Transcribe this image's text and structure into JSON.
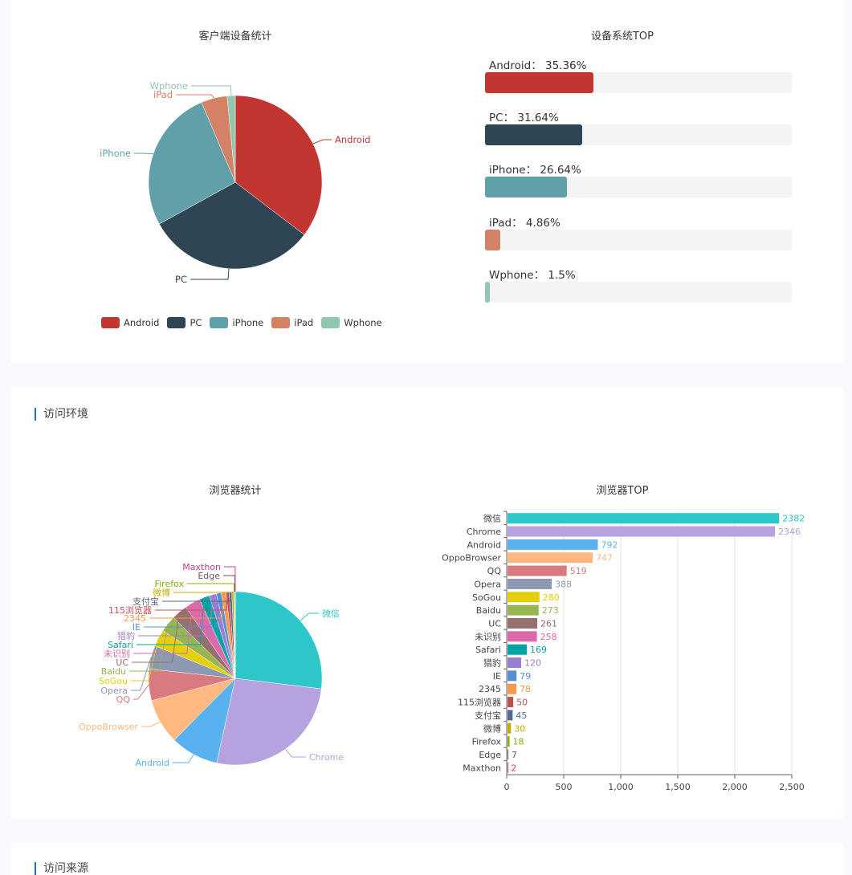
{
  "sections": {
    "environment_heading": "访问环境",
    "source_heading": "访问来源"
  },
  "chart_data": [
    {
      "type": "pie",
      "title": "客户端设备统计",
      "categories": [
        "Android",
        "PC",
        "iPhone",
        "iPad",
        "Wphone"
      ],
      "values": [
        35.36,
        31.64,
        26.64,
        4.86,
        1.5
      ],
      "colors": [
        "#c23531",
        "#2f4554",
        "#61a0a8",
        "#d48265",
        "#91c7ae"
      ],
      "legend": [
        "Android",
        "PC",
        "iPhone",
        "iPad",
        "Wphone"
      ],
      "legend_position": "bottom"
    },
    {
      "type": "bar",
      "orientation": "horizontal",
      "title": "设备系统TOP",
      "items": [
        {
          "label": "Android：  35.36%",
          "name": "Android",
          "value": 35.36
        },
        {
          "label": "PC：  31.64%",
          "name": "PC",
          "value": 31.64
        },
        {
          "label": "iPhone：  26.64%",
          "name": "iPhone",
          "value": 26.64
        },
        {
          "label": "iPad：  4.86%",
          "name": "iPad",
          "value": 4.86
        },
        {
          "label": "Wphone：  1.5%",
          "name": "Wphone",
          "value": 1.5
        }
      ],
      "colors": [
        "#c23531",
        "#2f4554",
        "#61a0a8",
        "#d48265",
        "#91c7ae"
      ],
      "track_color": "#f4f4f4",
      "xlim": [
        0,
        100
      ]
    },
    {
      "type": "pie",
      "title": "浏览器统计",
      "categories": [
        "微信",
        "Chrome",
        "Android",
        "OppoBrowser",
        "QQ",
        "Opera",
        "SoGou",
        "Baidu",
        "UC",
        "未识别",
        "Safari",
        "猎豹",
        "IE",
        "2345",
        "115浏览器",
        "支付宝",
        "微博",
        "Firefox",
        "Edge",
        "Maxthon"
      ],
      "values": [
        2382,
        2346,
        792,
        747,
        519,
        388,
        280,
        273,
        261,
        258,
        169,
        120,
        79,
        78,
        50,
        45,
        30,
        18,
        7,
        2
      ],
      "colors": [
        "#2ec7c9",
        "#b6a2de",
        "#5ab1ef",
        "#ffb980",
        "#d87a80",
        "#8d98b3",
        "#e5cf0d",
        "#97b552",
        "#95706d",
        "#dc69aa",
        "#07a2a4",
        "#9a7fd1",
        "#588dd5",
        "#f5994e",
        "#c05050",
        "#59678c",
        "#c9ab00",
        "#7eb00a",
        "#6f5553",
        "#c14089"
      ]
    },
    {
      "type": "bar",
      "orientation": "horizontal",
      "title": "浏览器TOP",
      "categories": [
        "微信",
        "Chrome",
        "Android",
        "OppoBrowser",
        "QQ",
        "Opera",
        "SoGou",
        "Baidu",
        "UC",
        "未识别",
        "Safari",
        "猎豹",
        "IE",
        "2345",
        "115浏览器",
        "支付宝",
        "微博",
        "Firefox",
        "Edge",
        "Maxthon"
      ],
      "values": [
        2382,
        2346,
        792,
        747,
        519,
        388,
        280,
        273,
        261,
        258,
        169,
        120,
        79,
        78,
        50,
        45,
        30,
        18,
        7,
        2
      ],
      "colors": [
        "#2ec7c9",
        "#b6a2de",
        "#5ab1ef",
        "#ffb980",
        "#d87a80",
        "#8d98b3",
        "#e5cf0d",
        "#97b552",
        "#95706d",
        "#dc69aa",
        "#07a2a4",
        "#9a7fd1",
        "#588dd5",
        "#f5994e",
        "#c05050",
        "#59678c",
        "#c9ab00",
        "#7eb00a",
        "#6f5553",
        "#c14089"
      ],
      "xlim": [
        0,
        2500
      ],
      "xticks": [
        "0",
        "500",
        "1,000",
        "1,500",
        "2,000",
        "2,500"
      ],
      "xtick_values": [
        0,
        500,
        1000,
        1500,
        2000,
        2500
      ],
      "grid": true,
      "data_labels": true
    }
  ]
}
